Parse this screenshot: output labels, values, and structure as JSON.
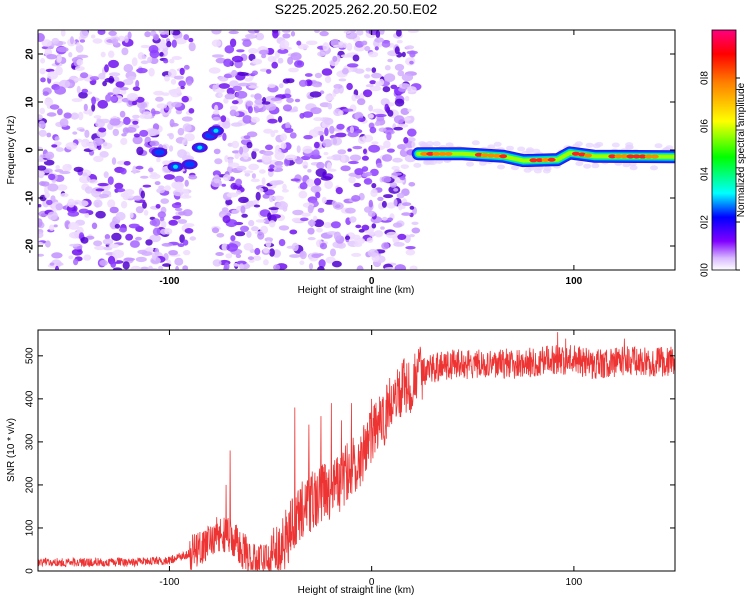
{
  "title": "S225.2025.262.20.50.E02",
  "chart_data": [
    {
      "type": "heatmap",
      "name": "spectrogram",
      "xlabel": "Height of straight line (km)",
      "ylabel": "Frequency (Hz)",
      "xlim": [
        -165,
        150
      ],
      "ylim": [
        -25,
        25
      ],
      "xticks": [
        -100,
        0,
        100
      ],
      "yticks": [
        -20,
        -10,
        0,
        10,
        20
      ],
      "colorbar": {
        "label": "Normalized spectral amplitude",
        "range": [
          0,
          1
        ],
        "ticks": [
          0.0,
          0.2,
          0.4,
          0.6,
          0.8
        ],
        "colormap": [
          "#ffffff",
          "#c8a0ff",
          "#8000ff",
          "#0000ff",
          "#00ffff",
          "#00ff00",
          "#ffff00",
          "#ff8000",
          "#ff0000",
          "#ff0080"
        ]
      },
      "blank_bands_km": [
        [
          -88,
          -78
        ],
        [
          22,
          150
        ]
      ],
      "noise_band_km": [
        -165,
        22
      ],
      "signal_trace": [
        {
          "x": -105,
          "y": -0.5
        },
        {
          "x": -97,
          "y": -3.5
        },
        {
          "x": -90,
          "y": -3.0
        },
        {
          "x": -85,
          "y": 0.5
        },
        {
          "x": -80,
          "y": 3.0
        },
        {
          "x": -77,
          "y": 4.0
        }
      ],
      "carrier_trace": [
        {
          "x": 23,
          "y": -0.8
        },
        {
          "x": 45,
          "y": -0.8
        },
        {
          "x": 65,
          "y": -1.3
        },
        {
          "x": 75,
          "y": -2.2
        },
        {
          "x": 92,
          "y": -2.0
        },
        {
          "x": 98,
          "y": -0.6
        },
        {
          "x": 110,
          "y": -1.3
        },
        {
          "x": 150,
          "y": -1.4
        }
      ]
    },
    {
      "type": "line",
      "name": "snr",
      "xlabel": "Height of straight line (km)",
      "ylabel": "SNR (10 * v/v)",
      "xlim": [
        -165,
        150
      ],
      "ylim": [
        0,
        560
      ],
      "xticks": [
        -100,
        0,
        100
      ],
      "yticks": [
        0,
        100,
        200,
        300,
        400,
        500
      ],
      "color": "#ee3333",
      "envelope": {
        "x": [
          -165,
          -120,
          -100,
          -90,
          -85,
          -80,
          -75,
          -70,
          -65,
          -60,
          -55,
          -50,
          -45,
          -40,
          -35,
          -30,
          -25,
          -20,
          -15,
          -10,
          -5,
          0,
          5,
          10,
          15,
          20,
          25,
          30,
          40,
          50,
          60,
          70,
          80,
          90,
          100,
          110,
          120,
          130,
          140,
          150
        ],
        "y": [
          20,
          20,
          25,
          40,
          55,
          70,
          90,
          80,
          55,
          30,
          20,
          25,
          45,
          100,
          140,
          160,
          180,
          190,
          210,
          240,
          270,
          310,
          350,
          390,
          420,
          440,
          460,
          470,
          480,
          480,
          485,
          480,
          485,
          490,
          490,
          480,
          485,
          490,
          485,
          490
        ]
      },
      "spikes": [
        {
          "x": -70,
          "y": 280
        },
        {
          "x": -72,
          "y": 200
        },
        {
          "x": -38,
          "y": 380
        },
        {
          "x": -31,
          "y": 340
        },
        {
          "x": -25,
          "y": 360
        },
        {
          "x": -20,
          "y": 390
        },
        {
          "x": -15,
          "y": 350
        },
        {
          "x": -10,
          "y": 390
        },
        {
          "x": 0,
          "y": 400
        },
        {
          "x": 92,
          "y": 555
        },
        {
          "x": 96,
          "y": 540
        },
        {
          "x": 125,
          "y": 540
        }
      ]
    }
  ]
}
